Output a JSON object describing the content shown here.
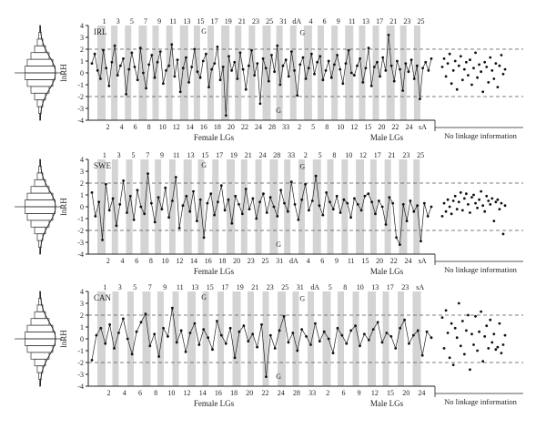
{
  "y_axis_label": "lnRH",
  "x_group_labels": [
    "Female LGs",
    "Male LGs"
  ],
  "no_linkage_label": "No linkage information",
  "panels": [
    {
      "name": "IRL",
      "top_labels": [
        "1",
        "3",
        "5",
        "7",
        "9",
        "11",
        "13",
        "15",
        "17",
        "19",
        "21",
        "23",
        "25",
        "31",
        "dA",
        "4",
        "6",
        "9",
        "11",
        "13",
        "17",
        "21",
        "23",
        "25"
      ],
      "bottom_labels": [
        "2",
        "4",
        "6",
        "8",
        "10",
        "12",
        "14",
        "16",
        "18",
        "20",
        "22",
        "24",
        "28",
        "33",
        "2",
        "5",
        "8",
        "10",
        "12",
        "15",
        "20",
        "22",
        "24",
        "sA"
      ],
      "g_marks": [
        "G",
        "G",
        "G"
      ]
    },
    {
      "name": "SWE",
      "top_labels": [
        "1",
        "3",
        "5",
        "7",
        "9",
        "11",
        "13",
        "15",
        "17",
        "19",
        "21",
        "24",
        "28",
        "33",
        "2",
        "5",
        "8",
        "10",
        "12",
        "17",
        "21",
        "23",
        "25"
      ],
      "bottom_labels": [
        "2",
        "4",
        "6",
        "8",
        "10",
        "12",
        "14",
        "16",
        "18",
        "20",
        "23",
        "25",
        "31",
        "dA",
        "4",
        "6",
        "9",
        "11",
        "15",
        "20",
        "22",
        "24",
        "sA"
      ],
      "g_marks": [
        "G",
        "G",
        "G"
      ]
    },
    {
      "name": "CAN",
      "top_labels": [
        "1",
        "3",
        "5",
        "7",
        "9",
        "11",
        "13",
        "15",
        "17",
        "19",
        "21",
        "23",
        "25",
        "31",
        "dA",
        "5",
        "8",
        "10",
        "13",
        "17",
        "23",
        "sA"
      ],
      "bottom_labels": [
        "2",
        "4",
        "6",
        "8",
        "10",
        "12",
        "14",
        "16",
        "18",
        "20",
        "22",
        "24",
        "28",
        "33",
        "2",
        "6",
        "9",
        "12",
        "15",
        "20",
        "24"
      ],
      "g_marks": [
        "G",
        "G",
        "G"
      ]
    }
  ],
  "chart_data": {
    "type": "scatter",
    "ylabel": "lnRH",
    "ylim": [
      -4,
      4
    ],
    "yticks": [
      -4,
      -3,
      -2,
      -1,
      0,
      1,
      2,
      3,
      4
    ],
    "reference_lines": [
      2,
      -2
    ],
    "series": [
      {
        "name": "IRL",
        "linked_values": [
          0.8,
          1.6,
          0.2,
          -0.5,
          1.9,
          0.4,
          -1.1,
          0.9,
          2.3,
          -0.2,
          0.6,
          1.2,
          -1.8,
          0.3,
          1.7,
          0.5,
          -0.6,
          2.1,
          0.0,
          -1.3,
          0.7,
          1.5,
          -0.4,
          0.9,
          1.8,
          -0.9,
          0.2,
          0.6,
          2.4,
          -0.3,
          1.1,
          -1.6,
          0.4,
          1.3,
          -0.8,
          0.5,
          2.0,
          0.1,
          -0.4,
          1.0,
          1.6,
          -1.2,
          0.3,
          0.8,
          2.2,
          -0.6,
          0.5,
          -3.6,
          1.4,
          0.2,
          0.9,
          -0.5,
          1.7,
          0.3,
          -1.4,
          0.6,
          1.9,
          -0.2,
          0.8,
          -2.6,
          1.2,
          0.4,
          -0.7,
          1.5,
          0.1,
          2.3,
          -1.0,
          0.6,
          1.1,
          -0.3,
          1.8,
          0.2,
          -1.9,
          0.7,
          1.3,
          -0.5,
          0.4,
          1.6,
          -0.1,
          0.9,
          1.4,
          -0.6,
          0.2,
          1.0,
          -0.4,
          0.7,
          1.5,
          0.3,
          -0.9,
          0.8,
          1.9,
          0.0,
          -0.2,
          0.6,
          1.2,
          -0.8,
          0.4,
          2.1,
          -1.1,
          0.5,
          0.9,
          -0.3,
          1.3,
          0.2,
          3.2,
          0.6,
          -0.7,
          1.0,
          0.3,
          -1.5,
          0.8,
          0.1,
          1.1,
          -0.5,
          0.6,
          -2.2,
          0.4,
          0.9,
          0.2,
          1.2
        ],
        "unlinked_values": [
          0.5,
          1.2,
          -0.3,
          0.8,
          1.6,
          -0.9,
          0.2,
          1.0,
          -1.4,
          0.6,
          1.4,
          -0.6,
          0.3,
          0.9,
          -0.2,
          1.1,
          -1.0,
          0.4,
          1.7,
          -0.4,
          0.7,
          0.1,
          -1.6,
          0.9,
          0.5,
          -0.8,
          1.3,
          0.2,
          -0.5,
          0.8,
          -1.2,
          0.6,
          1.5,
          -0.1,
          0.3
        ]
      },
      {
        "name": "SWE",
        "linked_values": [
          1.2,
          -0.8,
          0.4,
          -2.8,
          1.9,
          -0.3,
          0.7,
          -1.6,
          0.2,
          2.2,
          -0.5,
          0.9,
          -1.1,
          1.4,
          0.0,
          -0.6,
          2.8,
          0.3,
          -1.3,
          0.8,
          -0.2,
          1.6,
          -0.9,
          0.5,
          2.5,
          -1.8,
          0.1,
          0.9,
          -0.4,
          1.3,
          -1.2,
          0.6,
          -2.6,
          0.3,
          1.1,
          -0.7,
          0.4,
          1.8,
          -0.3,
          0.6,
          -1.4,
          0.9,
          0.2,
          -0.6,
          1.5,
          -0.2,
          0.7,
          -1.0,
          0.4,
          1.1,
          -0.5,
          0.8,
          0.0,
          -0.8,
          1.4,
          0.3,
          -0.4,
          2.1,
          0.2,
          -1.1,
          0.6,
          1.9,
          -0.3,
          0.5,
          2.6,
          0.1,
          -0.7,
          1.2,
          0.4,
          -0.2,
          0.9,
          -0.5,
          0.6,
          0.3,
          -0.9,
          0.7,
          0.2,
          -0.3,
          0.9,
          1.1,
          0.4,
          -0.6,
          0.5,
          0.0,
          -1.5,
          0.8,
          0.3,
          -2.6,
          -3.2,
          0.2,
          -1.2,
          0.5,
          -0.4,
          0.1,
          -2.9,
          0.3,
          -0.8,
          0.0
        ],
        "unlinked_values": [
          -0.8,
          0.3,
          -0.4,
          0.6,
          0.0,
          -0.6,
          0.5,
          0.9,
          -0.2,
          0.4,
          1.2,
          -0.3,
          0.7,
          1.1,
          0.2,
          -0.5,
          0.8,
          1.0,
          0.3,
          -0.1,
          0.6,
          1.3,
          0.1,
          -0.4,
          0.9,
          0.5,
          0.2,
          0.7,
          -1.2,
          0.4,
          0.6,
          -0.2,
          0.3,
          -2.3,
          0.1
        ]
      },
      {
        "name": "CAN",
        "linked_values": [
          -1.8,
          0.3,
          0.9,
          -0.4,
          1.2,
          -0.8,
          0.5,
          1.7,
          0.0,
          -1.3,
          0.6,
          1.4,
          2.1,
          -0.6,
          0.4,
          -1.5,
          0.9,
          0.2,
          2.6,
          -0.3,
          0.7,
          -1.1,
          0.5,
          1.3,
          -0.5,
          0.8,
          0.1,
          -0.9,
          1.5,
          0.3,
          -0.4,
          0.9,
          -1.6,
          0.6,
          1.1,
          -0.2,
          0.4,
          -0.7,
          1.2,
          -3.2,
          0.3,
          -0.8,
          0.7,
          1.9,
          -0.3,
          0.5,
          -1.0,
          0.8,
          0.2,
          -0.5,
          1.3,
          -0.2,
          0.6,
          0.0,
          -1.2,
          0.9,
          0.3,
          -0.4,
          0.7,
          1.1,
          -0.6,
          0.4,
          -0.1,
          0.8,
          1.4,
          -0.3,
          0.5,
          0.2,
          -0.8,
          0.9,
          1.6,
          -0.4,
          0.3,
          0.7,
          -1.4,
          0.6,
          0.1
        ],
        "unlinked_values": [
          1.8,
          -0.8,
          2.4,
          0.5,
          -1.6,
          1.3,
          -2.2,
          0.9,
          0.1,
          3.0,
          -0.6,
          1.5,
          -1.3,
          0.7,
          2.0,
          -2.6,
          0.4,
          -0.5,
          1.9,
          -1.0,
          0.6,
          2.3,
          -1.9,
          0.2,
          1.1,
          -0.8,
          1.6,
          -0.3,
          0.4,
          -0.9,
          -0.7,
          1.3,
          -1.2,
          -0.5,
          0.3
        ]
      }
    ]
  }
}
